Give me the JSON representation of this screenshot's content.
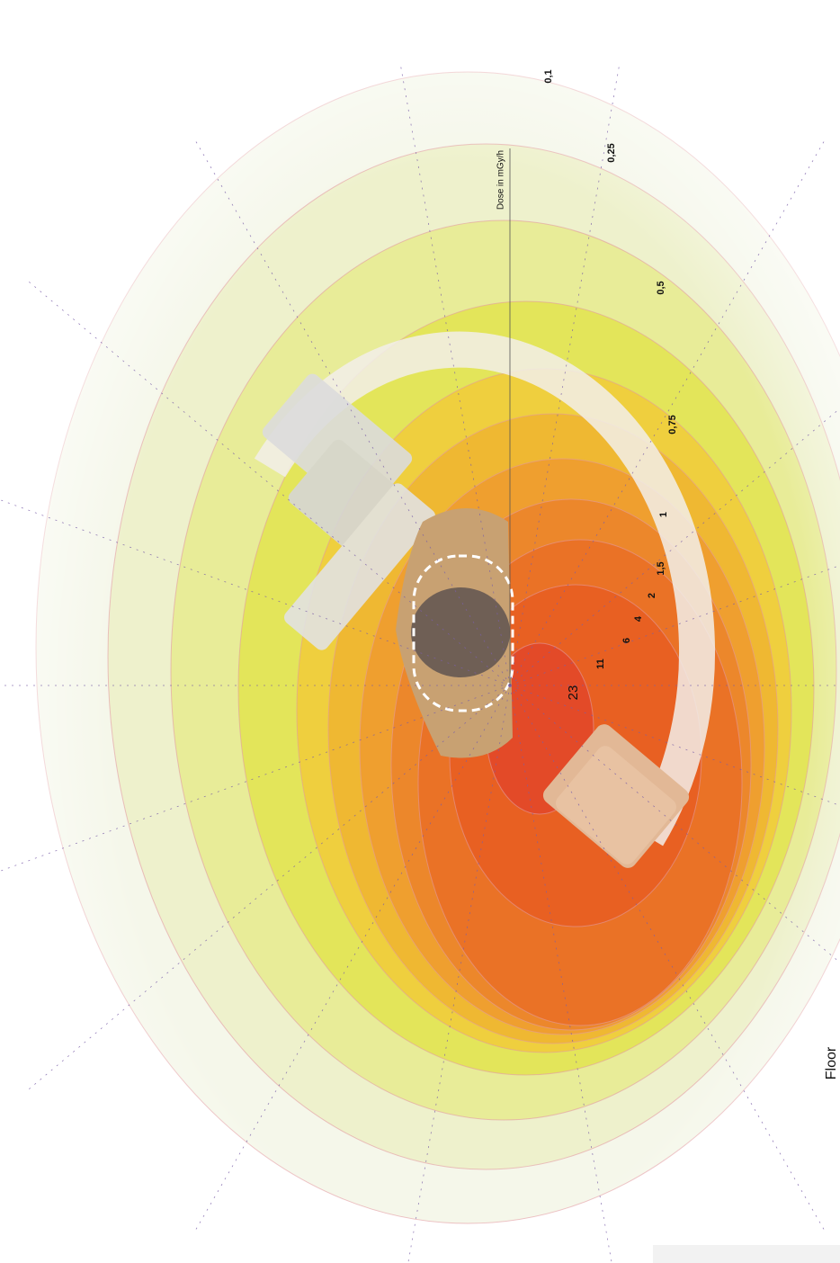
{
  "axis_label": "Dose in mGy/h",
  "isodose_labels": [
    "0,1",
    "0,25",
    "0,5",
    "0,75",
    "1",
    "1,5",
    "2",
    "4",
    "6",
    "11",
    "23"
  ],
  "floor_label": "Floor"
}
